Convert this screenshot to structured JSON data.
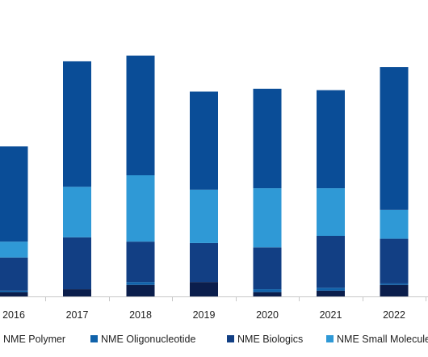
{
  "chart_data": {
    "type": "bar",
    "stacked": true,
    "categories": [
      "2016",
      "2017",
      "2018",
      "2019",
      "2020",
      "2021",
      "2022"
    ],
    "series": [
      {
        "name": "NME Polymer",
        "color": "#0b1e4c",
        "values": [
          3,
          5,
          8,
          10,
          3,
          4,
          8
        ]
      },
      {
        "name": "NME Oligonucleotide",
        "color": "#1062aa",
        "values": [
          1,
          0,
          2,
          0,
          2,
          2,
          1
        ]
      },
      {
        "name": "NME Biologics",
        "color": "#123f84",
        "values": [
          23,
          36,
          28,
          27,
          29,
          36,
          31
        ]
      },
      {
        "name": "NME Small Molecule",
        "color": "#2f99d6",
        "values": [
          11,
          35,
          46,
          37,
          41,
          33,
          20
        ]
      },
      {
        "name": "",
        "color": "#0a4d97",
        "values": [
          66,
          87,
          83,
          68,
          69,
          68,
          99
        ]
      }
    ],
    "ylim": [
      0,
      168
    ],
    "grid": false,
    "axis_color": "#c8c8c8",
    "legend_position": "bottom"
  }
}
